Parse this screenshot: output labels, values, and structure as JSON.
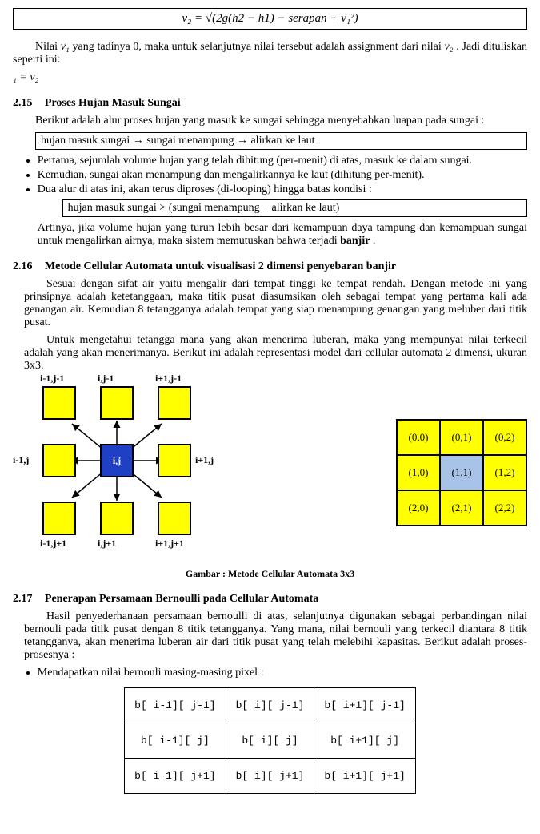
{
  "colors": {
    "yellow": "#ffff00",
    "blue": "#1f3fc4",
    "lightblue": "#a7c3e8",
    "black": "#000000",
    "white": "#ffffff"
  },
  "formula_top": "v₂ = √(2g(h2 − h1) − serapan + v₁²)",
  "para1a": "Nilai ",
  "para1_v1": "v₁",
  "para1b": " yang tadinya 0, maka untuk selanjutnya nilai tersebut adalah assignment dari nilai ",
  "para1_v2": "v₂",
  "para1c": ". Jadi dituliskan seperti ini:",
  "para1_eq": "₁ = v₂",
  "sec215": {
    "num": "2.15",
    "title": "Proses Hujan Masuk Sungai",
    "intro": "Berikut adalah alur proses hujan yang masuk ke sungai sehingga menyebabkan luapan pada sungai :",
    "box": "hujan masuk sungai → sungai menampung → alirkan ke laut",
    "bullets": [
      "Pertama, sejumlah volume hujan yang telah dihitung (per-menit) di atas, masuk ke dalam sungai.",
      "Kemudian, sungai akan menampung dan mengalirkannya ke laut (dihitung per-menit).",
      "Dua alur di atas ini, akan terus diproses (di-looping) hingga batas kondisi :"
    ],
    "sub_box": "hujan masuk sungai > (sungai menampung − alirkan ke laut)",
    "after1": "Artinya, jika volume hujan yang turun lebih besar dari kemampuan daya tampung dan kemampuan sungai untuk mengalirkan airnya, maka sistem memutuskan bahwa terjadi ",
    "after_bold": "banjir",
    "after2": "."
  },
  "sec216": {
    "num": "2.16",
    "title": "Metode Cellular Automata untuk visualisasi 2 dimensi penyebaran banjir",
    "p1": "Sesuai dengan sifat air yaitu mengalir dari tempat tinggi ke tempat rendah. Dengan metode ini yang prinsipnya adalah ketetanggaan, maka titik pusat diasumsikan oleh sebagai tempat yang pertama kali ada genangan air. Kemudian 8 tetangganya adalah tempat yang siap menampung genangan yang meluber dari titik pusat.",
    "p2": "Untuk mengetahui tetangga mana yang akan menerima luberan, maka yang mempunyai nilai terkecil adalah yang akan menerimanya. Berikut ini adalah representasi model dari cellular automata 2 dimensi, ukuran 3x3.",
    "caption": "Gambar : Metode Cellular Automata 3x3",
    "diagram": {
      "center_label": "i,j",
      "neighbors": [
        {
          "row": 0,
          "col": 0,
          "label": "i-1,j-1"
        },
        {
          "row": 0,
          "col": 1,
          "label": "i,j-1"
        },
        {
          "row": 0,
          "col": 2,
          "label": "i+1,j-1"
        },
        {
          "row": 1,
          "col": 0,
          "label": "i-1,j"
        },
        {
          "row": 1,
          "col": 2,
          "label": "i+1,j"
        },
        {
          "row": 2,
          "col": 0,
          "label": "i-1,j+1"
        },
        {
          "row": 2,
          "col": 1,
          "label": "i,j+1"
        },
        {
          "row": 2,
          "col": 2,
          "label": "i+1,j+1"
        }
      ]
    },
    "coord_grid": [
      [
        "(0,0)",
        "(0,1)",
        "(0,2)"
      ],
      [
        "(1,0)",
        "(1,1)",
        "(1,2)"
      ],
      [
        "(2,0)",
        "(2,1)",
        "(2,2)"
      ]
    ]
  },
  "sec217": {
    "num": "2.17",
    "title": "Penerapan Persamaan Bernoulli pada Cellular Automata",
    "p1": "Hasil penyederhanaan persamaan bernoulli di atas, selanjutnya digunakan sebagai perbandingan nilai bernouli pada titik pusat dengan 8 titik tetangganya. Yang mana, nilai bernouli yang terkecil diantara 8 titik tetangganya, akan menerima luberan air dari titik pusat yang telah melebihi kapasitas. Berikut adalah proses-prosesnya :",
    "bullet": "Mendapatkan nilai bernouli masing-masing pixel :",
    "table": [
      [
        "b[ i-1][ j-1]",
        "b[ i][ j-1]",
        "b[ i+1][ j-1]"
      ],
      [
        "b[ i-1][ j]",
        "b[ i][ j]",
        "b[ i+1][ j]"
      ],
      [
        "b[ i-1][ j+1]",
        "b[ i][ j+1]",
        "b[ i+1][ j+1]"
      ]
    ]
  }
}
